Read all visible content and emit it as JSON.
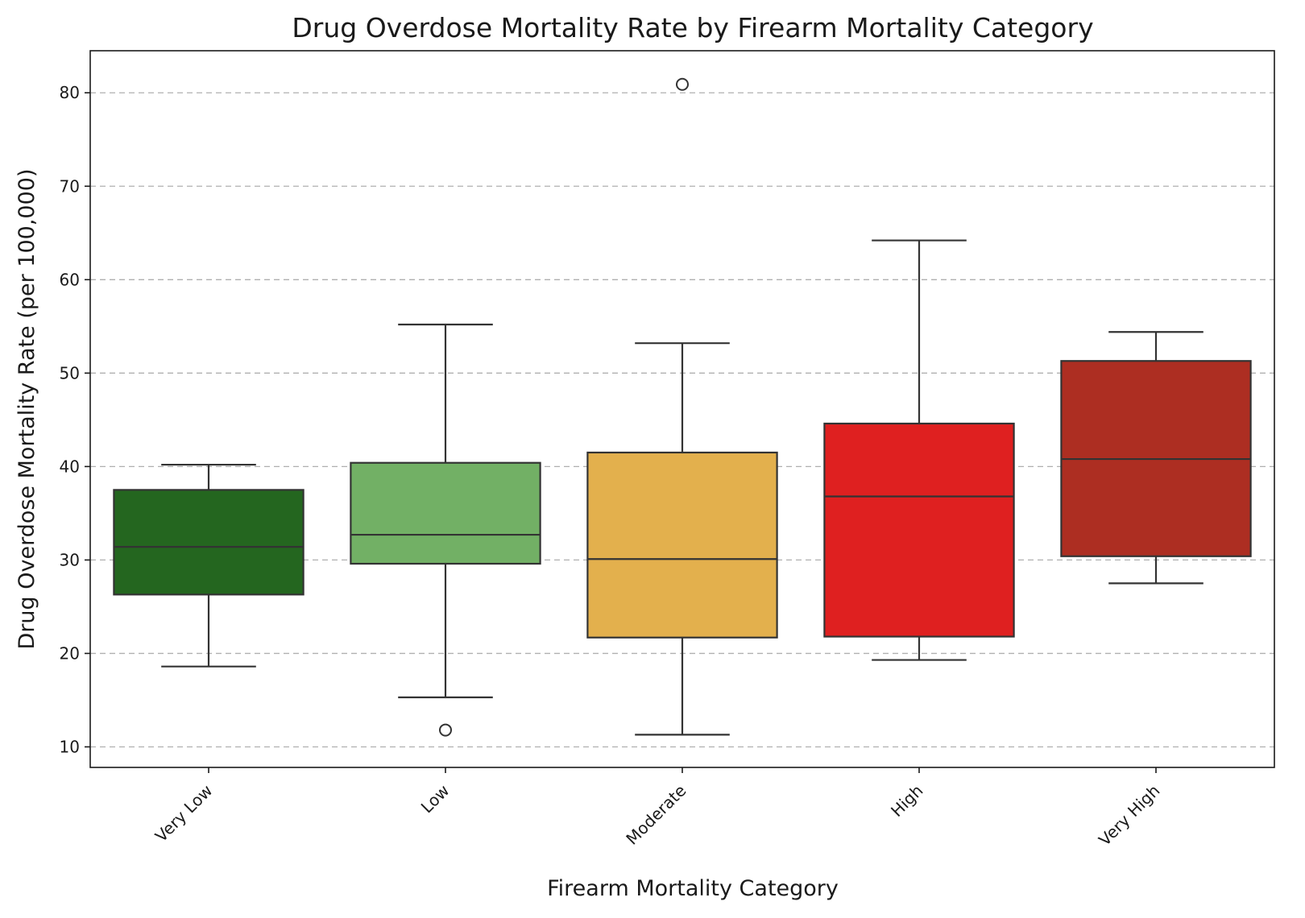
{
  "chart_data": {
    "type": "box",
    "title": "Drug Overdose Mortality Rate by Firearm Mortality Category",
    "xlabel": "Firearm Mortality Category",
    "ylabel": "Drug Overdose Mortality Rate (per 100,000)",
    "ylim": [
      7.8,
      84.5
    ],
    "yticks": [
      10,
      20,
      30,
      40,
      50,
      60,
      70,
      80
    ],
    "grid": "y-dashed",
    "categories": [
      "Very Low",
      "Low",
      "Moderate",
      "High",
      "Very High"
    ],
    "boxes": [
      {
        "category": "Very Low",
        "whisker_low": 18.6,
        "q1": 26.3,
        "median": 31.4,
        "q3": 37.5,
        "whisker_high": 40.2,
        "outliers": [],
        "color": "#24661f"
      },
      {
        "category": "Low",
        "whisker_low": 15.3,
        "q1": 29.6,
        "median": 32.7,
        "q3": 40.4,
        "whisker_high": 55.2,
        "outliers": [
          11.8
        ],
        "color": "#72b065"
      },
      {
        "category": "Moderate",
        "whisker_low": 11.3,
        "q1": 21.7,
        "median": 30.1,
        "q3": 41.5,
        "whisker_high": 53.2,
        "outliers": [
          80.9
        ],
        "color": "#e3b04d"
      },
      {
        "category": "High",
        "whisker_low": 19.3,
        "q1": 21.8,
        "median": 36.8,
        "q3": 44.6,
        "whisker_high": 64.2,
        "outliers": [],
        "color": "#df2020"
      },
      {
        "category": "Very High",
        "whisker_low": 27.5,
        "q1": 30.4,
        "median": 40.8,
        "q3": 51.3,
        "whisker_high": 54.4,
        "outliers": [],
        "color": "#ad2e22"
      }
    ]
  }
}
